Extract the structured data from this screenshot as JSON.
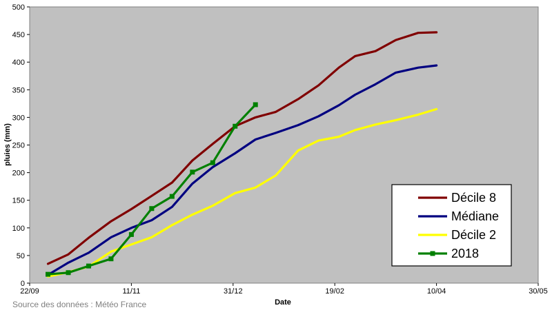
{
  "chart_data": {
    "type": "line",
    "xlabel": "Date",
    "ylabel": "pluies (mm)",
    "ylim": [
      0,
      500
    ],
    "yticks": [
      0,
      50,
      100,
      150,
      200,
      250,
      300,
      350,
      400,
      450,
      500
    ],
    "xlim": [
      "2017-09-22",
      "2018-05-30"
    ],
    "xticks": [
      {
        "date": "2017-09-22",
        "label": "22/09"
      },
      {
        "date": "2017-11-11",
        "label": "11/11"
      },
      {
        "date": "2017-12-31",
        "label": "31/12"
      },
      {
        "date": "2018-02-19",
        "label": "19/02"
      },
      {
        "date": "2018-04-10",
        "label": "10/04"
      },
      {
        "date": "2018-05-30",
        "label": "30/05"
      }
    ],
    "grid": false,
    "plot_background": "#c0c0c0",
    "legend": {
      "position": "right"
    },
    "series": [
      {
        "name": "Décile 8",
        "color": "#800000",
        "marker": "none",
        "x": [
          "2017-10-01",
          "2017-10-11",
          "2017-10-21",
          "2017-11-01",
          "2017-11-11",
          "2017-11-21",
          "2017-12-01",
          "2017-12-11",
          "2017-12-21",
          "2018-01-01",
          "2018-01-11",
          "2018-01-21",
          "2018-02-01",
          "2018-02-11",
          "2018-02-21",
          "2018-03-01",
          "2018-03-11",
          "2018-03-21",
          "2018-04-01",
          "2018-04-10"
        ],
        "y": [
          35,
          52,
          82,
          112,
          134,
          158,
          182,
          222,
          252,
          284,
          300,
          310,
          333,
          358,
          390,
          411,
          420,
          440,
          453,
          454
        ]
      },
      {
        "name": "Médiane",
        "color": "#000080",
        "marker": "none",
        "x": [
          "2017-10-01",
          "2017-10-11",
          "2017-10-21",
          "2017-11-01",
          "2017-11-11",
          "2017-11-21",
          "2017-12-01",
          "2017-12-11",
          "2017-12-21",
          "2018-01-01",
          "2018-01-11",
          "2018-01-21",
          "2018-02-01",
          "2018-02-11",
          "2018-02-21",
          "2018-03-01",
          "2018-03-11",
          "2018-03-21",
          "2018-04-01",
          "2018-04-10"
        ],
        "y": [
          15,
          37,
          55,
          83,
          100,
          114,
          138,
          180,
          210,
          235,
          260,
          272,
          286,
          302,
          322,
          341,
          360,
          381,
          390,
          394
        ]
      },
      {
        "name": "Décile 2",
        "color": "#ffff00",
        "marker": "none",
        "x": [
          "2017-10-01",
          "2017-10-11",
          "2017-10-21",
          "2017-11-01",
          "2017-11-11",
          "2017-11-21",
          "2017-12-01",
          "2017-12-11",
          "2017-12-21",
          "2018-01-01",
          "2018-01-11",
          "2018-01-21",
          "2018-02-01",
          "2018-02-11",
          "2018-02-21",
          "2018-03-01",
          "2018-03-11",
          "2018-03-21",
          "2018-04-01",
          "2018-04-10"
        ],
        "y": [
          12,
          20,
          30,
          57,
          70,
          83,
          105,
          124,
          140,
          163,
          173,
          195,
          240,
          258,
          265,
          277,
          287,
          295,
          305,
          315
        ]
      },
      {
        "name": "2018",
        "color": "#008000",
        "marker": "square",
        "x": [
          "2017-10-01",
          "2017-10-11",
          "2017-10-21",
          "2017-11-01",
          "2017-11-11",
          "2017-11-21",
          "2017-12-01",
          "2017-12-11",
          "2017-12-21",
          "2018-01-01",
          "2018-01-11"
        ],
        "y": [
          16,
          19,
          31,
          44,
          88,
          135,
          157,
          201,
          218,
          284,
          323
        ]
      }
    ]
  },
  "footer": {
    "source": "Source des données : Météo France"
  }
}
